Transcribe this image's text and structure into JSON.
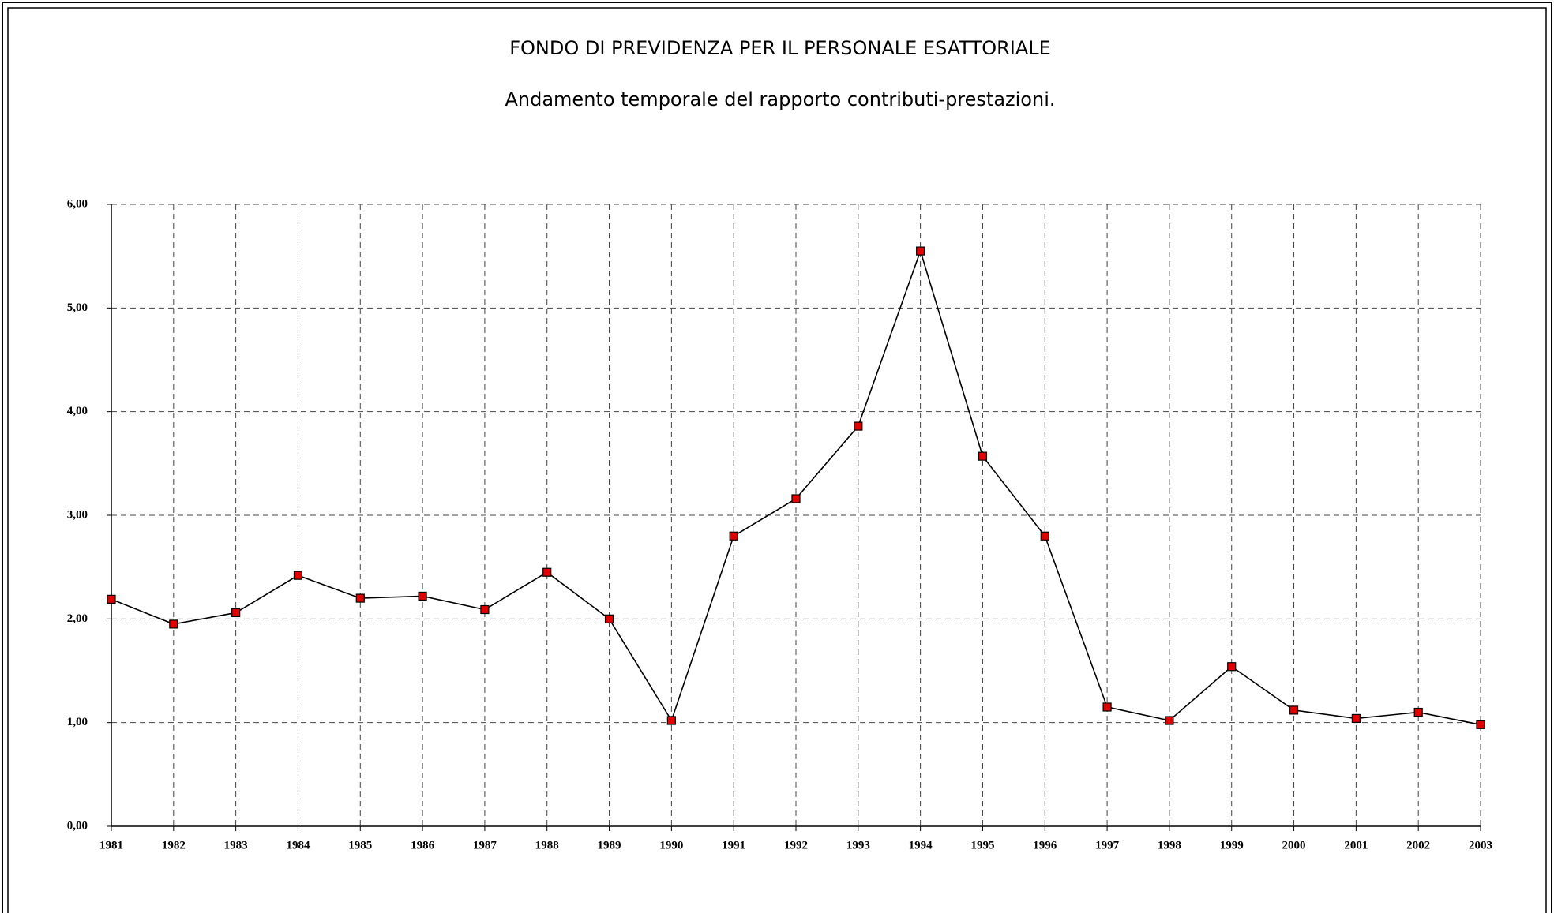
{
  "chart_data": {
    "type": "line",
    "title": "FONDO DI PREVIDENZA PER IL PERSONALE ESATTORIALE",
    "subtitle": "Andamento temporale del rapporto contributi-prestazioni.",
    "categories": [
      "1981",
      "1982",
      "1983",
      "1984",
      "1985",
      "1986",
      "1987",
      "1988",
      "1989",
      "1990",
      "1991",
      "1992",
      "1993",
      "1994",
      "1995",
      "1996",
      "1997",
      "1998",
      "1999",
      "2000",
      "2001",
      "2002",
      "2003"
    ],
    "series": [
      {
        "color": "#e00000",
        "values": [
          2.19,
          1.95,
          2.06,
          2.42,
          2.2,
          2.22,
          2.09,
          2.45,
          2.0,
          1.02,
          2.8,
          3.16,
          3.86,
          5.55,
          3.57,
          2.8,
          1.15,
          1.02,
          1.54,
          1.12,
          1.04,
          1.1,
          0.98
        ]
      }
    ],
    "ylim": [
      0,
      6
    ],
    "yticks": [
      {
        "value": 0,
        "label": "0,00"
      },
      {
        "value": 1,
        "label": "1,00"
      },
      {
        "value": 2,
        "label": "2,00"
      },
      {
        "value": 3,
        "label": "3,00"
      },
      {
        "value": 4,
        "label": "4,00"
      },
      {
        "value": 5,
        "label": "5,00"
      },
      {
        "value": 6,
        "label": "6,00"
      }
    ],
    "grid": true
  }
}
